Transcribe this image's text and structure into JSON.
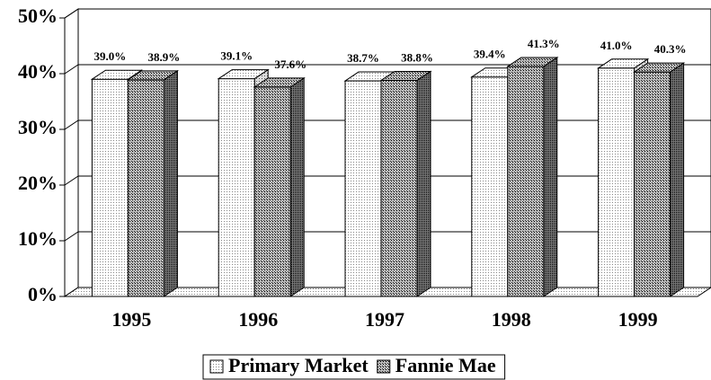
{
  "chart_data": {
    "type": "bar3d",
    "categories": [
      "1995",
      "1996",
      "1997",
      "1998",
      "1999"
    ],
    "series": [
      {
        "name": "Primary Market",
        "color": "#ffffff",
        "values": [
          39.0,
          39.1,
          38.7,
          39.4,
          41.0
        ],
        "value_labels": [
          "39.0%",
          "39.1%",
          "38.7%",
          "39.4%",
          "41.0%"
        ]
      },
      {
        "name": "Fannie Mae",
        "color": "#888888",
        "values": [
          38.9,
          37.6,
          38.8,
          41.3,
          40.3
        ],
        "value_labels": [
          "38.9%",
          "37.6%",
          "38.8%",
          "41.3%",
          "40.3%"
        ]
      }
    ],
    "ylim": [
      0,
      50
    ],
    "yticks": [
      {
        "value": 0,
        "label": "0%"
      },
      {
        "value": 10,
        "label": "10%"
      },
      {
        "value": 20,
        "label": "20%"
      },
      {
        "value": 30,
        "label": "30%"
      },
      {
        "value": 40,
        "label": "40%"
      },
      {
        "value": 50,
        "label": "50%"
      }
    ],
    "grid": true,
    "legend": "bottom"
  }
}
